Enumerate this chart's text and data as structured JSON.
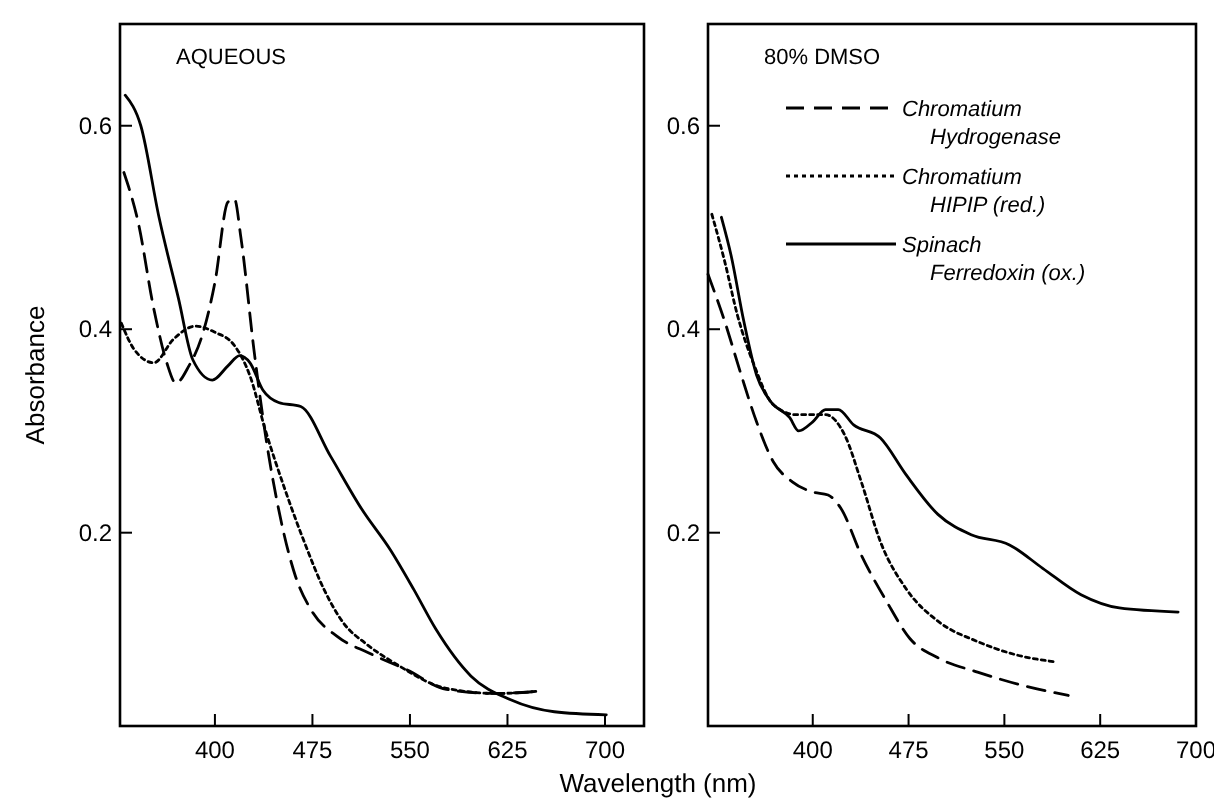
{
  "chart_data": [
    {
      "type": "line",
      "title": "AQUEOUS",
      "ylabel": "Absorbance",
      "xlim": [
        327,
        730
      ],
      "xticks": [
        400,
        475,
        550,
        625,
        700
      ],
      "ylim": [
        0.01,
        0.7
      ],
      "yticks": [
        0.2,
        0.4,
        0.6
      ],
      "grid": false,
      "legend": false,
      "marker": "none",
      "series": [
        {
          "color": "#000000",
          "line_style": "dashed",
          "x": [
            330,
            341,
            353,
            363,
            370,
            380,
            390,
            400,
            410,
            415,
            420,
            430,
            439,
            449,
            462,
            474,
            494,
            518,
            548,
            578,
            617,
            647
          ],
          "values": [
            0.554,
            0.505,
            0.42,
            0.367,
            0.347,
            0.364,
            0.393,
            0.446,
            0.525,
            0.528,
            0.49,
            0.38,
            0.295,
            0.223,
            0.157,
            0.124,
            0.098,
            0.082,
            0.065,
            0.046,
            0.042,
            0.044
          ]
        },
        {
          "color": "#000000",
          "line_style": "dotted",
          "x": [
            328,
            338,
            353,
            368,
            385,
            400,
            415,
            427,
            439,
            454,
            469,
            484,
            499,
            516,
            538,
            578,
            617,
            647
          ],
          "values": [
            0.406,
            0.38,
            0.367,
            0.39,
            0.403,
            0.397,
            0.384,
            0.354,
            0.3,
            0.242,
            0.19,
            0.144,
            0.111,
            0.091,
            0.072,
            0.047,
            0.042,
            0.044
          ]
        },
        {
          "color": "#000000",
          "line_style": "solid",
          "x": [
            331,
            343,
            357,
            372,
            383,
            398,
            410,
            419,
            427,
            437,
            449,
            466,
            489,
            513,
            535,
            553,
            570,
            597,
            627,
            661,
            701
          ],
          "values": [
            0.63,
            0.6,
            0.51,
            0.43,
            0.37,
            0.35,
            0.364,
            0.374,
            0.367,
            0.34,
            0.328,
            0.324,
            0.275,
            0.223,
            0.183,
            0.144,
            0.105,
            0.059,
            0.036,
            0.024,
            0.021
          ]
        }
      ]
    },
    {
      "type": "line",
      "title": "80% DMSO",
      "xlabel": "Wavelength (nm)",
      "xlim": [
        318,
        700
      ],
      "xticks": [
        400,
        475,
        550,
        625,
        700
      ],
      "ylim": [
        0.01,
        0.7
      ],
      "yticks": [
        0.2,
        0.4,
        0.6
      ],
      "grid": false,
      "legend": "top right",
      "marker": "none",
      "series": [
        {
          "name": "Chromatium Hydrogenase",
          "color": "#000000",
          "line_style": "dashed",
          "x": [
            318,
            331,
            344,
            356,
            369,
            384,
            400,
            412,
            422,
            438,
            458,
            476,
            498,
            529,
            564,
            600
          ],
          "values": [
            0.454,
            0.408,
            0.355,
            0.309,
            0.27,
            0.25,
            0.24,
            0.237,
            0.224,
            0.178,
            0.132,
            0.096,
            0.077,
            0.063,
            0.05,
            0.04
          ]
        },
        {
          "name": "Chromatium HIPIP (red.)",
          "color": "#000000",
          "line_style": "dotted",
          "x": [
            321,
            331,
            341,
            354,
            369,
            387,
            410,
            425,
            438,
            453,
            473,
            498,
            529,
            559,
            590
          ],
          "values": [
            0.513,
            0.467,
            0.414,
            0.365,
            0.326,
            0.316,
            0.316,
            0.296,
            0.25,
            0.191,
            0.145,
            0.113,
            0.093,
            0.08,
            0.073
          ]
        },
        {
          "name": "Spinach Ferredoxin (ox.)",
          "color": "#000000",
          "line_style": "solid",
          "x": [
            328.5,
            336,
            346,
            356,
            367,
            382,
            389,
            400,
            410,
            420,
            432,
            453,
            473,
            498,
            524,
            554,
            580,
            610,
            640,
            686
          ],
          "values": [
            0.51,
            0.473,
            0.408,
            0.355,
            0.329,
            0.313,
            0.3,
            0.309,
            0.321,
            0.321,
            0.306,
            0.293,
            0.257,
            0.218,
            0.198,
            0.188,
            0.165,
            0.139,
            0.126,
            0.122
          ]
        }
      ]
    }
  ]
}
